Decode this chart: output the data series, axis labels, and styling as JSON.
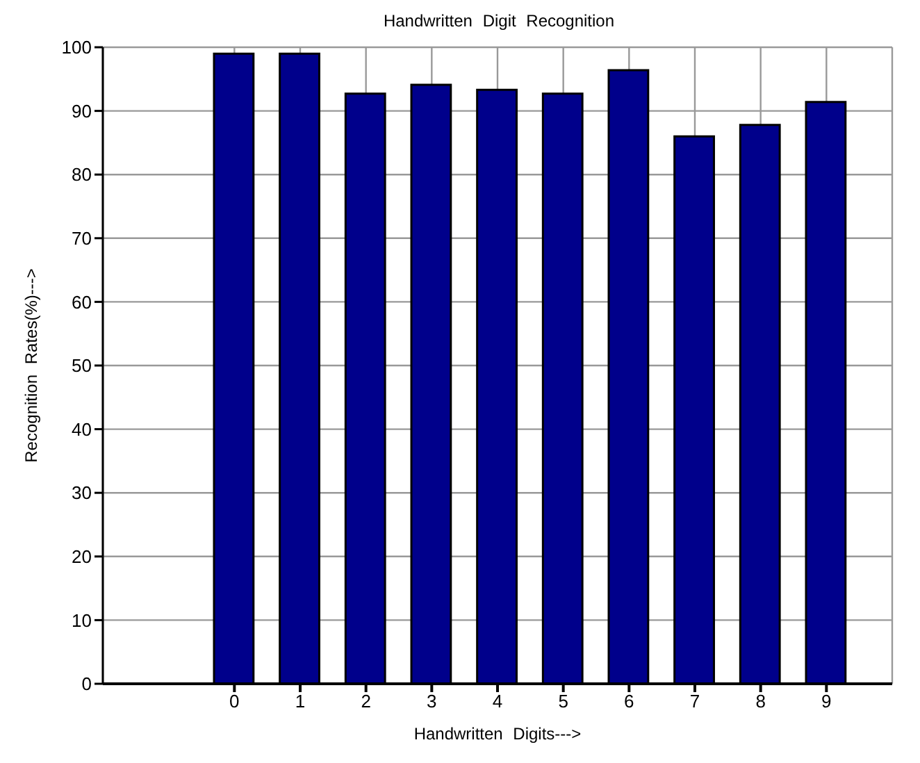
{
  "chart_data": {
    "type": "bar",
    "title": "Handwritten Digit Recognition",
    "xlabel": "Handwritten Digits--->",
    "ylabel": "Recognition Rates(%)--->",
    "x": [
      0,
      1,
      2,
      3,
      4,
      5,
      6,
      7,
      8,
      9
    ],
    "values": [
      99.0,
      99.0,
      92.7,
      94.1,
      93.3,
      92.7,
      96.4,
      86.0,
      87.8,
      91.4
    ],
    "color": "#00008b",
    "xlim": [
      -2,
      10
    ],
    "xticks": [
      0,
      1,
      2,
      3,
      4,
      5,
      6,
      7,
      8,
      9
    ],
    "ylim": [
      0,
      100
    ],
    "yticks": [
      0,
      10,
      20,
      30,
      40,
      50,
      60,
      70,
      80,
      90,
      100
    ],
    "grid": true
  }
}
